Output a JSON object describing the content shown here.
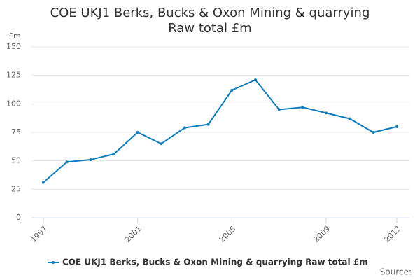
{
  "chart_data": {
    "type": "line",
    "title": "COE UKJ1 Berks, Bucks & Oxon Mining & quarrying Raw total £m",
    "y_axis_label": "£m",
    "x": [
      1997,
      1998,
      1999,
      2000,
      2001,
      2002,
      2003,
      2004,
      2005,
      2006,
      2007,
      2008,
      2009,
      2010,
      2011,
      2012
    ],
    "series": [
      {
        "name": "COE UKJ1 Berks, Bucks & Oxon Mining & quarrying Raw total £m",
        "color": "#0f7dba",
        "values": [
          31,
          49,
          51,
          56,
          75,
          65,
          79,
          82,
          112,
          121,
          95,
          97,
          92,
          87,
          75,
          80
        ]
      }
    ],
    "xlim": [
      1997,
      2012
    ],
    "xticks": [
      1997,
      2001,
      2005,
      2009,
      2012
    ],
    "ylim": [
      0,
      150
    ],
    "yticks": [
      0,
      25,
      50,
      75,
      100,
      125,
      150
    ],
    "grid": true,
    "legend": "bottom",
    "source": "Source:"
  }
}
